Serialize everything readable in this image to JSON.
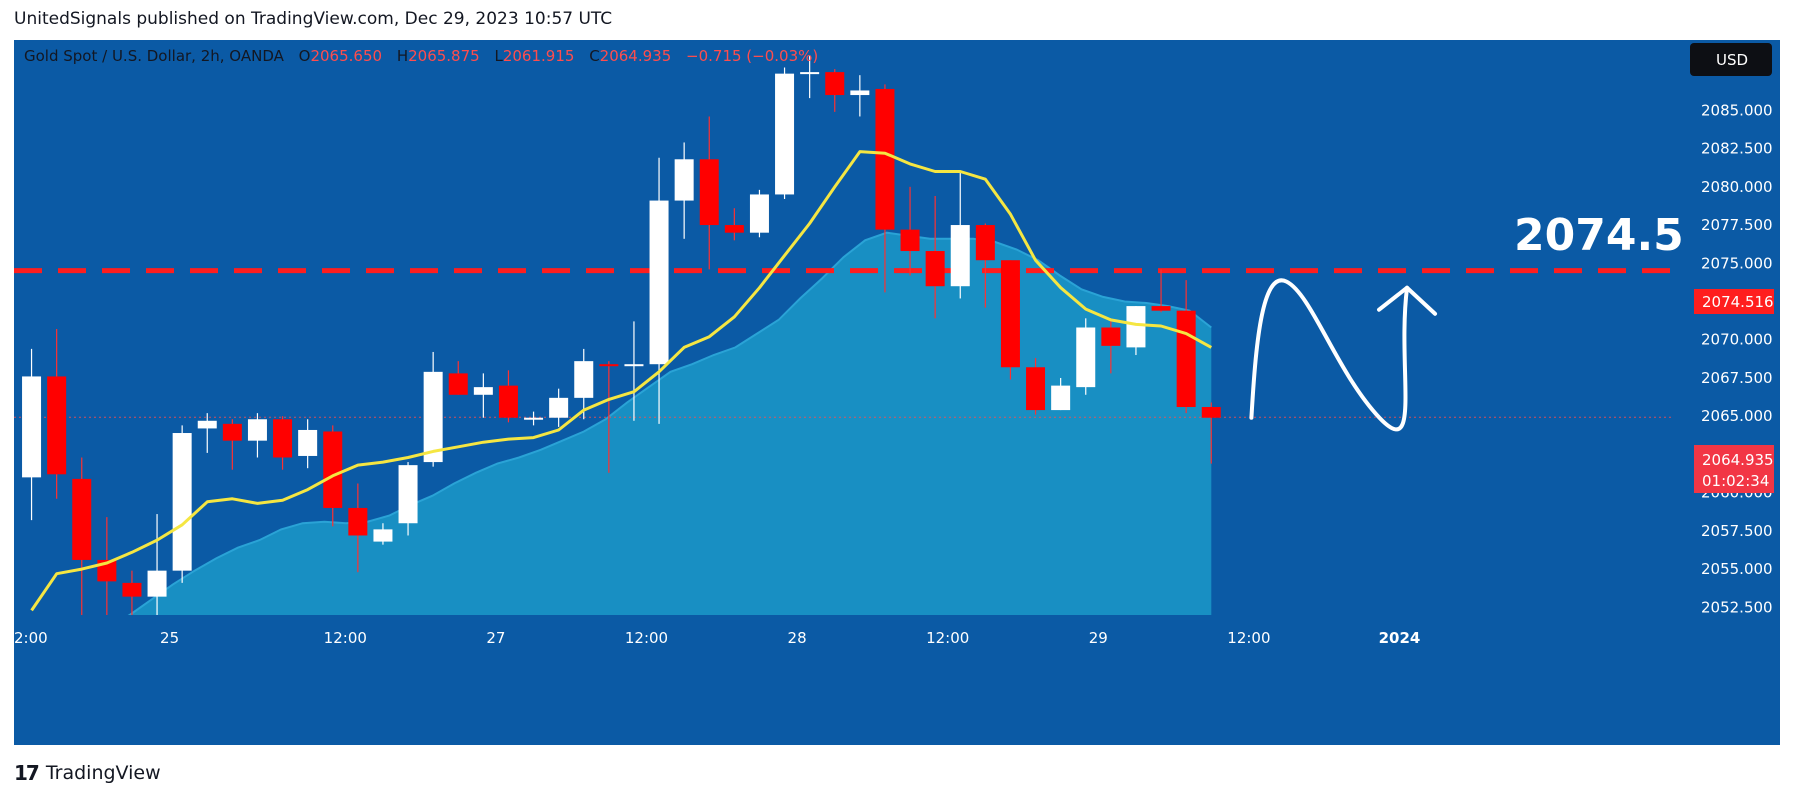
{
  "header": {
    "text": "UnitedSignals published on TradingView.com, Dec 29, 2023 10:57 UTC"
  },
  "footer": {
    "brand": "TradingView",
    "logo_glyph": "17"
  },
  "chart_data": {
    "type": "candlestick",
    "symbol_line": {
      "name": "Gold Spot / U.S. Dollar, 2h, OANDA",
      "o_label": "O",
      "o_value": "2065.650",
      "h_label": "H",
      "h_value": "2065.875",
      "l_label": "L",
      "l_value": "2061.915",
      "c_label": "C",
      "c_value": "2064.935",
      "change": "−0.715 (−0.03%)"
    },
    "currency": "USD",
    "ylim": [
      2052.0,
      2089.6
    ],
    "y_ticks": [
      "2052.500",
      "2055.000",
      "2057.500",
      "2060.000",
      "2062.500",
      "2065.000",
      "2067.500",
      "2070.000",
      "2072.500",
      "2075.000",
      "2077.500",
      "2080.000",
      "2082.500",
      "2085.000"
    ],
    "x_tick_labels": [
      {
        "bar": 0,
        "label": "2:00"
      },
      {
        "bar": 5.5,
        "label": "25"
      },
      {
        "bar": 12.5,
        "label": "12:00"
      },
      {
        "bar": 18.5,
        "label": "27"
      },
      {
        "bar": 24.5,
        "label": "12:00"
      },
      {
        "bar": 30.5,
        "label": "28"
      },
      {
        "bar": 36.5,
        "label": "12:00"
      },
      {
        "bar": 42.5,
        "label": "29"
      },
      {
        "bar": 48.5,
        "label": "12:00"
      },
      {
        "bar": 54.5,
        "label": "2024"
      }
    ],
    "candles": [
      {
        "o": 2061.0,
        "h": 2069.4,
        "l": 2058.2,
        "c": 2067.6
      },
      {
        "o": 2067.6,
        "h": 2070.7,
        "l": 2059.6,
        "c": 2061.2
      },
      {
        "o": 2060.9,
        "h": 2062.3,
        "l": 2051.5,
        "c": 2055.6
      },
      {
        "o": 2055.6,
        "h": 2058.4,
        "l": 2052.0,
        "c": 2054.2
      },
      {
        "o": 2054.1,
        "h": 2054.9,
        "l": 2052.0,
        "c": 2053.2
      },
      {
        "o": 2053.2,
        "h": 2058.6,
        "l": 2052.0,
        "c": 2054.9
      },
      {
        "o": 2054.9,
        "h": 2064.4,
        "l": 2054.1,
        "c": 2063.9
      },
      {
        "o": 2064.2,
        "h": 2065.2,
        "l": 2062.6,
        "c": 2064.7
      },
      {
        "o": 2064.5,
        "h": 2064.8,
        "l": 2061.5,
        "c": 2063.4
      },
      {
        "o": 2063.4,
        "h": 2065.2,
        "l": 2062.3,
        "c": 2064.8
      },
      {
        "o": 2064.8,
        "h": 2065.0,
        "l": 2061.5,
        "c": 2062.3
      },
      {
        "o": 2062.4,
        "h": 2064.8,
        "l": 2061.6,
        "c": 2064.1
      },
      {
        "o": 2064.0,
        "h": 2064.4,
        "l": 2057.8,
        "c": 2059.0
      },
      {
        "o": 2059.0,
        "h": 2060.6,
        "l": 2054.8,
        "c": 2057.2
      },
      {
        "o": 2056.8,
        "h": 2058.0,
        "l": 2056.6,
        "c": 2057.6
      },
      {
        "o": 2058.0,
        "h": 2062.0,
        "l": 2057.2,
        "c": 2061.8
      },
      {
        "o": 2062.0,
        "h": 2069.2,
        "l": 2061.7,
        "c": 2067.9
      },
      {
        "o": 2067.8,
        "h": 2068.6,
        "l": 2066.4,
        "c": 2066.4
      },
      {
        "o": 2066.4,
        "h": 2067.8,
        "l": 2064.9,
        "c": 2066.9
      },
      {
        "o": 2067.0,
        "h": 2068.0,
        "l": 2064.6,
        "c": 2064.9
      },
      {
        "o": 2064.9,
        "h": 2065.3,
        "l": 2064.4,
        "c": 2064.9
      },
      {
        "o": 2064.9,
        "h": 2066.8,
        "l": 2064.3,
        "c": 2066.2
      },
      {
        "o": 2066.2,
        "h": 2069.4,
        "l": 2064.8,
        "c": 2068.6
      },
      {
        "o": 2068.4,
        "h": 2068.6,
        "l": 2061.3,
        "c": 2068.3
      },
      {
        "o": 2068.3,
        "h": 2071.2,
        "l": 2064.7,
        "c": 2068.4
      },
      {
        "o": 2068.4,
        "h": 2081.9,
        "l": 2064.5,
        "c": 2079.1
      },
      {
        "o": 2079.1,
        "h": 2082.9,
        "l": 2076.6,
        "c": 2081.8
      },
      {
        "o": 2081.8,
        "h": 2084.6,
        "l": 2074.6,
        "c": 2077.5
      },
      {
        "o": 2077.5,
        "h": 2078.6,
        "l": 2076.5,
        "c": 2077.0
      },
      {
        "o": 2077.0,
        "h": 2079.8,
        "l": 2076.7,
        "c": 2079.5
      },
      {
        "o": 2079.5,
        "h": 2087.8,
        "l": 2079.2,
        "c": 2087.4
      },
      {
        "o": 2087.5,
        "h": 2088.6,
        "l": 2085.8,
        "c": 2087.5
      },
      {
        "o": 2087.5,
        "h": 2087.7,
        "l": 2084.9,
        "c": 2086.0
      },
      {
        "o": 2086.0,
        "h": 2087.3,
        "l": 2084.6,
        "c": 2086.3
      },
      {
        "o": 2086.4,
        "h": 2086.7,
        "l": 2073.1,
        "c": 2077.2
      },
      {
        "o": 2077.2,
        "h": 2080.0,
        "l": 2074.2,
        "c": 2075.8
      },
      {
        "o": 2075.8,
        "h": 2079.4,
        "l": 2071.4,
        "c": 2073.5
      },
      {
        "o": 2073.5,
        "h": 2080.9,
        "l": 2072.7,
        "c": 2077.5
      },
      {
        "o": 2077.5,
        "h": 2077.6,
        "l": 2072.1,
        "c": 2075.2
      },
      {
        "o": 2075.2,
        "h": 2075.2,
        "l": 2067.4,
        "c": 2068.2
      },
      {
        "o": 2068.2,
        "h": 2068.8,
        "l": 2065.1,
        "c": 2065.4
      },
      {
        "o": 2065.4,
        "h": 2067.5,
        "l": 2065.4,
        "c": 2067.0
      },
      {
        "o": 2066.9,
        "h": 2071.4,
        "l": 2066.4,
        "c": 2070.8
      },
      {
        "o": 2070.8,
        "h": 2071.4,
        "l": 2067.8,
        "c": 2069.6
      },
      {
        "o": 2069.5,
        "h": 2072.2,
        "l": 2069.0,
        "c": 2072.2
      },
      {
        "o": 2072.2,
        "h": 2074.6,
        "l": 2071.8,
        "c": 2071.9
      },
      {
        "o": 2071.9,
        "h": 2073.9,
        "l": 2065.2,
        "c": 2065.6
      },
      {
        "o": 2065.6,
        "h": 2065.9,
        "l": 2061.9,
        "c": 2064.9
      }
    ],
    "ema_fast": [
      2052.3,
      2054.7,
      2055.0,
      2055.4,
      2056.1,
      2056.9,
      2057.9,
      2059.4,
      2059.6,
      2059.3,
      2059.5,
      2060.2,
      2061.1,
      2061.8,
      2062.0,
      2062.3,
      2062.7,
      2063.0,
      2063.3,
      2063.5,
      2063.6,
      2064.1,
      2065.4,
      2066.1,
      2066.6,
      2067.9,
      2069.5,
      2070.2,
      2071.5,
      2073.4,
      2075.5,
      2077.6,
      2080.0,
      2082.3,
      2082.2,
      2081.5,
      2081.0,
      2081.0,
      2080.5,
      2078.2,
      2075.2,
      2073.4,
      2072.0,
      2071.3,
      2071.0,
      2070.9,
      2070.4,
      2069.5
    ],
    "ema_slow": [
      2048.0,
      2048.8,
      2049.6,
      2050.4,
      2051.2,
      2052.0,
      2053.0,
      2054.0,
      2054.9,
      2055.7,
      2056.4,
      2056.9,
      2057.6,
      2058.0,
      2058.1,
      2058.0,
      2058.1,
      2058.5,
      2059.2,
      2059.8,
      2060.6,
      2061.3,
      2061.9,
      2062.3,
      2062.8,
      2063.4,
      2064.0,
      2064.8,
      2065.9,
      2066.9,
      2067.9,
      2068.4,
      2069.0,
      2069.5,
      2070.4,
      2071.3,
      2072.7,
      2074.0,
      2075.4,
      2076.5,
      2077.0,
      2076.8,
      2076.6,
      2076.6,
      2076.6,
      2076.4,
      2075.9,
      2075.2,
      2074.2,
      2073.3,
      2072.8,
      2072.5,
      2072.4,
      2072.2,
      2071.9,
      2070.8
    ],
    "horizontal_level": {
      "value": 2074.516,
      "label": "2074.516",
      "color": "#ff1e1e",
      "style": "dashed"
    },
    "annotation_text": "2074.5",
    "last_price": {
      "value": 2064.935,
      "label": "2064.935",
      "countdown": "01:02:34",
      "color": "#f23645"
    },
    "forecast_path": [
      [
        48.6,
        2064.9
      ],
      [
        49.0,
        2072.0
      ],
      [
        50.0,
        2073.8
      ],
      [
        52.0,
        2067.2
      ],
      [
        53.7,
        2064.9
      ],
      [
        54.8,
        2073.4
      ]
    ],
    "colors": {
      "background": "#0b5aa5",
      "up_body": "#ffffff",
      "down_body": "#ff0000",
      "ema_fast": "#f5e642",
      "ema_slow_fill": "#1a95c7",
      "ema_slow_line": "#2aa3d6",
      "axis_text": "#ffffff",
      "value_red": "#ff4d4d"
    }
  }
}
